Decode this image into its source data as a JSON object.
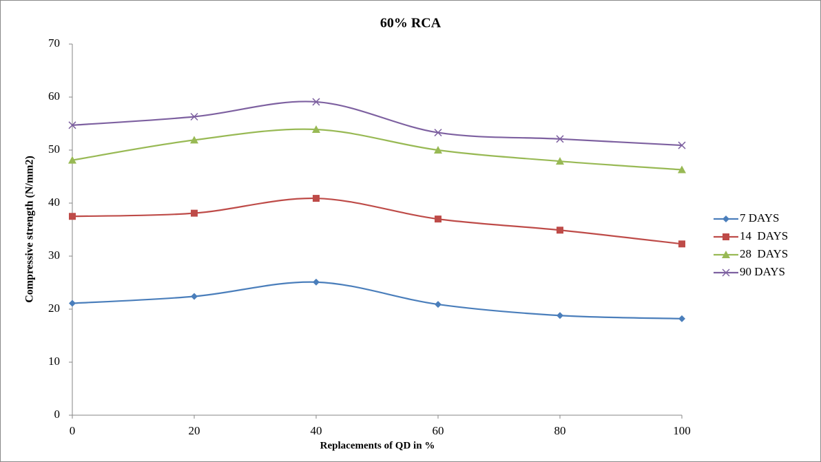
{
  "chart_data": {
    "type": "line",
    "title": "60% RCA",
    "x_label": "Replacements of QD in %",
    "y_label": "Compressive strength (N/mm2)",
    "x": [
      0,
      20,
      40,
      60,
      80,
      100
    ],
    "series": [
      {
        "name": "7 DAYS",
        "color": "#4a7ebb",
        "marker": "diamond",
        "values": [
          21.1,
          22.4,
          25.1,
          20.9,
          18.8,
          18.2
        ]
      },
      {
        "name": "14  DAYS",
        "color": "#be4b48",
        "marker": "square",
        "values": [
          37.5,
          38.1,
          40.9,
          37.0,
          34.9,
          32.3
        ]
      },
      {
        "name": "28  DAYS",
        "color": "#98b954",
        "marker": "triangle",
        "values": [
          48.1,
          51.9,
          53.9,
          50.0,
          47.9,
          46.3
        ]
      },
      {
        "name": "90 DAYS",
        "color": "#7d60a0",
        "marker": "x",
        "values": [
          54.7,
          56.3,
          59.1,
          53.3,
          52.1,
          50.9
        ]
      }
    ],
    "xlim": [
      0,
      100
    ],
    "xticks": [
      0,
      20,
      40,
      60,
      80,
      100
    ],
    "ylim": [
      0,
      70
    ],
    "yticks": [
      0,
      10,
      20,
      30,
      40,
      50,
      60,
      70
    ],
    "smooth": true,
    "legend": "right"
  }
}
